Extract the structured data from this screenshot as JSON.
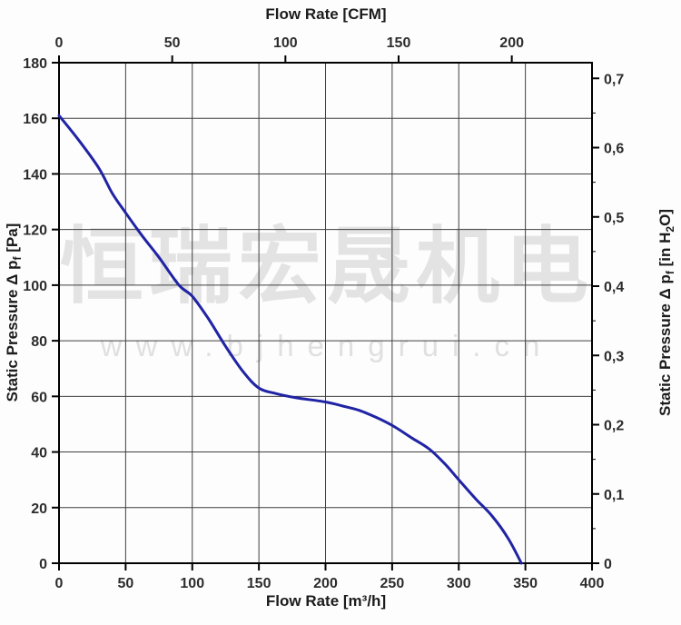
{
  "watermark": {
    "brand": "恒瑞宏晟机电",
    "url": "www.bjhengrui.cn"
  },
  "colors": {
    "background": "#fdfdfd",
    "curve": "#2024a4",
    "grid": "#3f3f3f",
    "axis": "#000000",
    "tick_text": "#2d2d2d",
    "watermark": "#e2e2e2"
  },
  "axis_titles": {
    "top": {
      "text": "Flow Rate [CFM]"
    },
    "bottom": {
      "text": "Flow Rate [m³/h]"
    },
    "left": {
      "pre": "Static Pressure Δ p",
      "sub": "f",
      "post": " [Pa]"
    },
    "right": {
      "pre": "Static Pressure Δ p",
      "sub": "f",
      "mid": " [in H",
      "sub2": "2",
      "post": "O]"
    }
  },
  "chart_data": {
    "type": "line",
    "title": "",
    "grid": "on",
    "legend": "none",
    "axes": {
      "bottom": {
        "label": "Flow Rate [m³/h]",
        "min": 0,
        "max": 400,
        "ticks": [
          0,
          50,
          100,
          150,
          200,
          250,
          300,
          350,
          400
        ]
      },
      "top": {
        "label": "Flow Rate [CFM]",
        "ticks": [
          0,
          50,
          100,
          150,
          200
        ],
        "m3h_per_cfm": 1.699
      },
      "left": {
        "label": "Static Pressure Δ pf [Pa]",
        "min": 0,
        "max": 180,
        "ticks": [
          180,
          160,
          140,
          120,
          100,
          80,
          60,
          40,
          20,
          0
        ]
      },
      "right": {
        "label": "Static Pressure Δ pf [in H₂O]",
        "pa_per_unit": 249.089,
        "minor_step": 0.05,
        "ticks": [
          {
            "v": 0.7,
            "label": "0,7"
          },
          {
            "v": 0.6,
            "label": "0,6"
          },
          {
            "v": 0.5,
            "label": "0,5"
          },
          {
            "v": 0.4,
            "label": "0,4"
          },
          {
            "v": 0.3,
            "label": "0,3"
          },
          {
            "v": 0.2,
            "label": "0,2"
          },
          {
            "v": 0.1,
            "label": "0,1"
          },
          {
            "v": 0.0,
            "label": "0"
          }
        ]
      }
    },
    "series": [
      {
        "name": "fan-performance-curve",
        "color": "#2024a4",
        "points": [
          [
            0,
            161
          ],
          [
            15,
            152
          ],
          [
            30,
            142
          ],
          [
            40,
            133
          ],
          [
            50,
            126
          ],
          [
            62,
            118
          ],
          [
            75,
            110
          ],
          [
            90,
            100
          ],
          [
            100,
            96
          ],
          [
            112,
            88
          ],
          [
            125,
            78
          ],
          [
            138,
            69
          ],
          [
            150,
            63
          ],
          [
            163,
            61
          ],
          [
            178,
            59.5
          ],
          [
            200,
            58
          ],
          [
            213,
            56.5
          ],
          [
            225,
            55
          ],
          [
            240,
            52
          ],
          [
            252,
            49
          ],
          [
            265,
            45
          ],
          [
            278,
            41
          ],
          [
            290,
            35.5
          ],
          [
            300,
            30
          ],
          [
            313,
            23
          ],
          [
            325,
            17
          ],
          [
            337,
            9
          ],
          [
            347,
            0
          ]
        ]
      }
    ]
  }
}
